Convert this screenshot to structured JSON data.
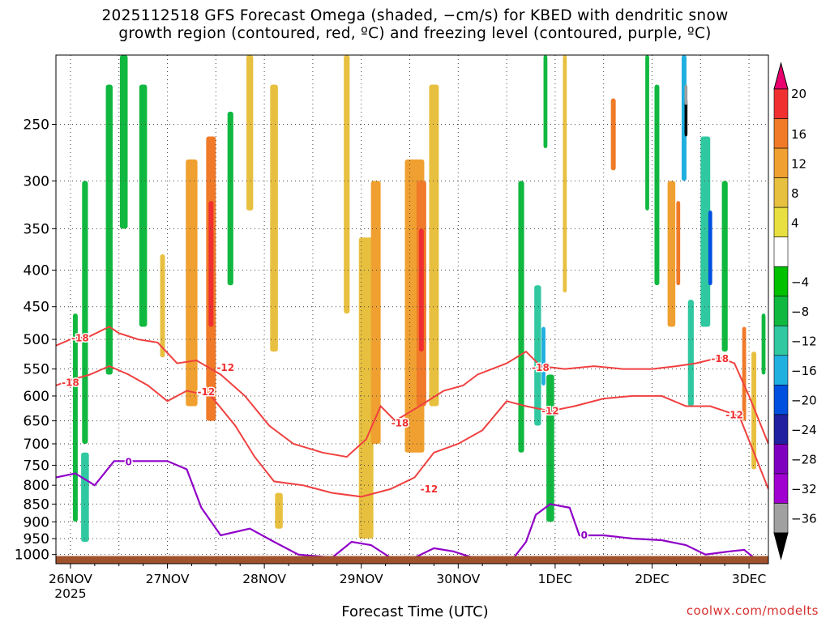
{
  "title_line1": "2025112518 GFS Forecast Omega (shaded, −cm/s) for KBED with dendritic snow",
  "title_line2": "growth region (contoured, red, ºC) and freezing level (contoured, purple, ºC)",
  "credit": "coolwx.com/modelts",
  "chart_data": {
    "type": "heatmap",
    "xlabel": "Forecast Time (UTC)",
    "ylabel": "",
    "x_ticks": [
      "26NOV",
      "27NOV",
      "28NOV",
      "29NOV",
      "30NOV",
      "1DEC",
      "2DEC",
      "3DEC"
    ],
    "x_tick_sublabel": "2025",
    "y_ticks": [
      250,
      300,
      350,
      400,
      450,
      500,
      550,
      600,
      650,
      700,
      750,
      800,
      850,
      900,
      950,
      1000
    ],
    "y_axis": "pressure (hPa), log scale, inverted",
    "ylim": [
      1030,
      200
    ],
    "xlim_days": [
      25.85,
      33.2
    ],
    "colorbar": {
      "labels": [
        "20",
        "16",
        "12",
        "8",
        "4",
        "−4",
        "−8",
        "−12",
        "−16",
        "−20",
        "−24",
        "−28",
        "−32",
        "−36"
      ],
      "colors": [
        "#e8006e",
        "#f03030",
        "#f07a28",
        "#f0a030",
        "#e8c040",
        "#e8e040",
        "#ffffff",
        "#00c000",
        "#10b840",
        "#30c8a0",
        "#20b0e0",
        "#0050e0",
        "#2020a0",
        "#8000c0",
        "#a000d0",
        "#a0a0a0",
        "#000000"
      ]
    },
    "contour_labels": {
      "dendritic_red": [
        "-18",
        "-12",
        "-18",
        "-12",
        "-18",
        "-12",
        "-18",
        "-12",
        "-18",
        "-12"
      ],
      "freezing_purple": [
        "0",
        "0"
      ]
    },
    "omega_cells": [
      {
        "day": 26.05,
        "p0": 460,
        "p1": 900,
        "w": 0.05,
        "v": -9
      },
      {
        "day": 26.15,
        "p0": 300,
        "p1": 700,
        "w": 0.06,
        "v": -8
      },
      {
        "day": 26.15,
        "p0": 720,
        "p1": 960,
        "w": 0.08,
        "v": -14
      },
      {
        "day": 26.4,
        "p0": 220,
        "p1": 560,
        "w": 0.07,
        "v": -8
      },
      {
        "day": 26.55,
        "p0": 200,
        "p1": 350,
        "w": 0.08,
        "v": -8
      },
      {
        "day": 26.75,
        "p0": 220,
        "p1": 480,
        "w": 0.08,
        "v": -8
      },
      {
        "day": 26.95,
        "p0": 380,
        "p1": 530,
        "w": 0.05,
        "v": 6
      },
      {
        "day": 27.25,
        "p0": 280,
        "p1": 620,
        "w": 0.12,
        "v": 8
      },
      {
        "day": 27.45,
        "p0": 260,
        "p1": 650,
        "w": 0.1,
        "v": 13
      },
      {
        "day": 27.45,
        "p0": 320,
        "p1": 480,
        "w": 0.05,
        "v": 17
      },
      {
        "day": 27.65,
        "p0": 240,
        "p1": 420,
        "w": 0.06,
        "v": -8
      },
      {
        "day": 27.85,
        "p0": 200,
        "p1": 330,
        "w": 0.07,
        "v": 6
      },
      {
        "day": 28.1,
        "p0": 220,
        "p1": 520,
        "w": 0.08,
        "v": 6
      },
      {
        "day": 28.15,
        "p0": 820,
        "p1": 920,
        "w": 0.08,
        "v": 6
      },
      {
        "day": 28.85,
        "p0": 200,
        "p1": 460,
        "w": 0.06,
        "v": 6
      },
      {
        "day": 29.05,
        "p0": 360,
        "p1": 950,
        "w": 0.15,
        "v": 6
      },
      {
        "day": 29.15,
        "p0": 300,
        "p1": 700,
        "w": 0.1,
        "v": 8
      },
      {
        "day": 29.55,
        "p0": 280,
        "p1": 720,
        "w": 0.2,
        "v": 9
      },
      {
        "day": 29.62,
        "p0": 300,
        "p1": 620,
        "w": 0.1,
        "v": 13
      },
      {
        "day": 29.62,
        "p0": 350,
        "p1": 520,
        "w": 0.05,
        "v": 17
      },
      {
        "day": 29.75,
        "p0": 220,
        "p1": 620,
        "w": 0.1,
        "v": 6
      },
      {
        "day": 30.65,
        "p0": 300,
        "p1": 720,
        "w": 0.06,
        "v": -10
      },
      {
        "day": 30.82,
        "p0": 420,
        "p1": 660,
        "w": 0.07,
        "v": -12
      },
      {
        "day": 30.88,
        "p0": 480,
        "p1": 580,
        "w": 0.04,
        "v": -16
      },
      {
        "day": 30.95,
        "p0": 560,
        "p1": 900,
        "w": 0.08,
        "v": -9
      },
      {
        "day": 30.9,
        "p0": 200,
        "p1": 270,
        "w": 0.04,
        "v": -8
      },
      {
        "day": 31.1,
        "p0": 200,
        "p1": 430,
        "w": 0.04,
        "v": 6
      },
      {
        "day": 31.6,
        "p0": 230,
        "p1": 290,
        "w": 0.05,
        "v": 14
      },
      {
        "day": 31.95,
        "p0": 200,
        "p1": 330,
        "w": 0.04,
        "v": -8
      },
      {
        "day": 32.05,
        "p0": 220,
        "p1": 420,
        "w": 0.05,
        "v": -10
      },
      {
        "day": 32.2,
        "p0": 300,
        "p1": 480,
        "w": 0.08,
        "v": 9
      },
      {
        "day": 32.27,
        "p0": 320,
        "p1": 420,
        "w": 0.04,
        "v": 15
      },
      {
        "day": 32.33,
        "p0": 200,
        "p1": 300,
        "w": 0.05,
        "v": -18
      },
      {
        "day": 32.35,
        "p0": 230,
        "p1": 260,
        "w": 0.03,
        "v": -36
      },
      {
        "day": 32.35,
        "p0": 220,
        "p1": 235,
        "w": 0.03,
        "v": -32
      },
      {
        "day": 32.4,
        "p0": 440,
        "p1": 620,
        "w": 0.06,
        "v": -14
      },
      {
        "day": 32.55,
        "p0": 260,
        "p1": 480,
        "w": 0.1,
        "v": -13
      },
      {
        "day": 32.6,
        "p0": 330,
        "p1": 420,
        "w": 0.04,
        "v": -22
      },
      {
        "day": 32.75,
        "p0": 300,
        "p1": 520,
        "w": 0.06,
        "v": -9
      },
      {
        "day": 32.95,
        "p0": 480,
        "p1": 650,
        "w": 0.04,
        "v": 14
      },
      {
        "day": 33.05,
        "p0": 520,
        "p1": 760,
        "w": 0.05,
        "v": 6
      },
      {
        "day": 33.15,
        "p0": 460,
        "p1": 560,
        "w": 0.04,
        "v": -9
      }
    ],
    "dendritic_minus18": [
      [
        25.85,
        510
      ],
      [
        26.0,
        500
      ],
      [
        26.2,
        495
      ],
      [
        26.4,
        480
      ],
      [
        26.5,
        490
      ],
      [
        26.7,
        500
      ],
      [
        26.9,
        505
      ],
      [
        27.1,
        540
      ],
      [
        27.3,
        535
      ],
      [
        27.55,
        560
      ],
      [
        27.8,
        600
      ],
      [
        28.05,
        660
      ],
      [
        28.3,
        700
      ],
      [
        28.6,
        720
      ],
      [
        28.85,
        730
      ],
      [
        29.05,
        690
      ],
      [
        29.2,
        620
      ],
      [
        29.35,
        650
      ],
      [
        29.6,
        620
      ],
      [
        29.85,
        590
      ],
      [
        30.05,
        580
      ],
      [
        30.2,
        560
      ],
      [
        30.5,
        540
      ],
      [
        30.7,
        520
      ],
      [
        30.85,
        545
      ],
      [
        31.1,
        550
      ],
      [
        31.4,
        545
      ],
      [
        31.7,
        550
      ],
      [
        32.0,
        550
      ],
      [
        32.25,
        545
      ],
      [
        32.45,
        540
      ],
      [
        32.7,
        530
      ],
      [
        32.85,
        540
      ],
      [
        33.0,
        600
      ],
      [
        33.2,
        700
      ]
    ],
    "dendritic_minus12": [
      [
        25.85,
        580
      ],
      [
        26.0,
        570
      ],
      [
        26.2,
        560
      ],
      [
        26.4,
        545
      ],
      [
        26.6,
        560
      ],
      [
        26.8,
        580
      ],
      [
        27.0,
        610
      ],
      [
        27.2,
        590
      ],
      [
        27.45,
        600
      ],
      [
        27.7,
        660
      ],
      [
        27.9,
        730
      ],
      [
        28.1,
        790
      ],
      [
        28.4,
        800
      ],
      [
        28.7,
        820
      ],
      [
        29.0,
        830
      ],
      [
        29.3,
        810
      ],
      [
        29.55,
        780
      ],
      [
        29.75,
        720
      ],
      [
        30.0,
        700
      ],
      [
        30.25,
        670
      ],
      [
        30.5,
        610
      ],
      [
        30.7,
        620
      ],
      [
        30.95,
        630
      ],
      [
        31.2,
        620
      ],
      [
        31.5,
        605
      ],
      [
        31.8,
        600
      ],
      [
        32.1,
        600
      ],
      [
        32.35,
        620
      ],
      [
        32.6,
        620
      ],
      [
        32.9,
        640
      ],
      [
        33.05,
        720
      ],
      [
        33.2,
        810
      ]
    ],
    "freezing_level": [
      [
        25.85,
        780
      ],
      [
        26.05,
        770
      ],
      [
        26.25,
        800
      ],
      [
        26.45,
        740
      ],
      [
        26.7,
        740
      ],
      [
        27.0,
        740
      ],
      [
        27.2,
        760
      ],
      [
        27.35,
        860
      ],
      [
        27.55,
        940
      ],
      [
        27.85,
        920
      ],
      [
        28.1,
        960
      ],
      [
        28.35,
        1000
      ],
      [
        28.7,
        1010
      ],
      [
        28.9,
        960
      ],
      [
        29.1,
        970
      ],
      [
        29.3,
        1010
      ],
      [
        29.55,
        1010
      ],
      [
        29.75,
        980
      ],
      [
        29.95,
        990
      ],
      [
        30.15,
        1010
      ],
      [
        30.4,
        1020
      ],
      [
        30.55,
        1020
      ],
      [
        30.7,
        960
      ],
      [
        30.8,
        880
      ],
      [
        30.95,
        850
      ],
      [
        31.15,
        860
      ],
      [
        31.25,
        940
      ],
      [
        31.5,
        940
      ],
      [
        31.8,
        950
      ],
      [
        32.1,
        955
      ],
      [
        32.35,
        970
      ],
      [
        32.55,
        1000
      ],
      [
        32.8,
        990
      ],
      [
        32.95,
        985
      ],
      [
        33.05,
        1010
      ]
    ]
  }
}
